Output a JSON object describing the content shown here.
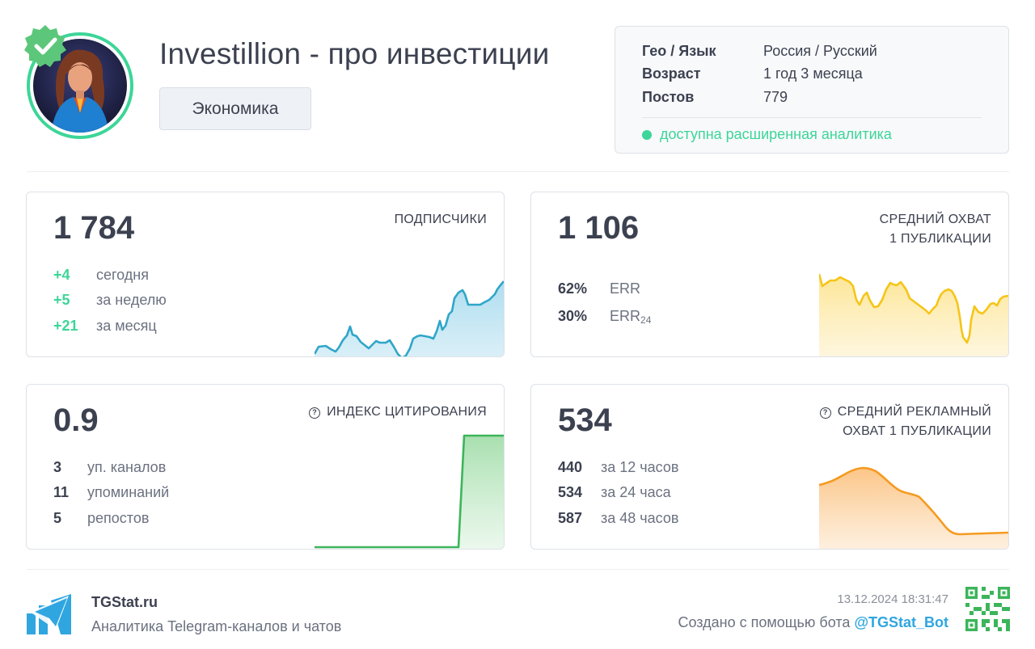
{
  "channel": {
    "title": "Investillion - про инвестиции",
    "category": "Экономика"
  },
  "info": {
    "geo_label": "Гео / Язык",
    "geo_value": "Россия / Русский",
    "age_label": "Возраст",
    "age_value": "1 год 3 месяца",
    "posts_label": "Постов",
    "posts_value": "779",
    "status": "доступна расширенная аналитика"
  },
  "subscribers": {
    "value": "1 784",
    "label": "ПОДПИСЧИКИ",
    "rows": [
      {
        "num": "+4",
        "text": "сегодня"
      },
      {
        "num": "+5",
        "text": "за неделю"
      },
      {
        "num": "+21",
        "text": "за месяц"
      }
    ]
  },
  "reach": {
    "value": "1 106",
    "label_line1": "СРЕДНИЙ ОХВАТ",
    "label_line2": "1 ПУБЛИКАЦИИ",
    "err_value": "62%",
    "err_label": "ERR",
    "err24_value": "30%",
    "err24_label": "ERR",
    "err24_sub": "24"
  },
  "citation": {
    "value": "0.9",
    "label": "ИНДЕКС ЦИТИРОВАНИЯ",
    "rows": [
      {
        "num": "3",
        "text": "уп. каналов"
      },
      {
        "num": "11",
        "text": "упоминаний"
      },
      {
        "num": "5",
        "text": "репостов"
      }
    ]
  },
  "ad_reach": {
    "value": "534",
    "label_line1": "СРЕДНИЙ РЕКЛАМНЫЙ",
    "label_line2": "ОХВАТ 1 ПУБЛИКАЦИИ",
    "rows": [
      {
        "num": "440",
        "text": "за 12 часов"
      },
      {
        "num": "534",
        "text": "за 24 часа"
      },
      {
        "num": "587",
        "text": "за 48 часов"
      }
    ]
  },
  "footer": {
    "brand": "TGStat.ru",
    "tagline": "Аналитика Telegram-каналов и чатов",
    "date": "13.12.2024 18:31:47",
    "made_with": "Создано с помощью бота",
    "bot": "@TGStat_Bot"
  },
  "colors": {
    "accent_green": "#3dd598",
    "subscribers_line": "#2fa6c8",
    "reach_line": "#f5c518",
    "citation_line": "#3cb55a",
    "ad_line": "#f59a1f",
    "link": "#2fa6e0"
  },
  "icons": {
    "verified": "verified-badge-icon",
    "help": "help-circle-icon",
    "brand_logo": "tgstat-logo-icon",
    "qr": "qr-code-icon"
  }
}
